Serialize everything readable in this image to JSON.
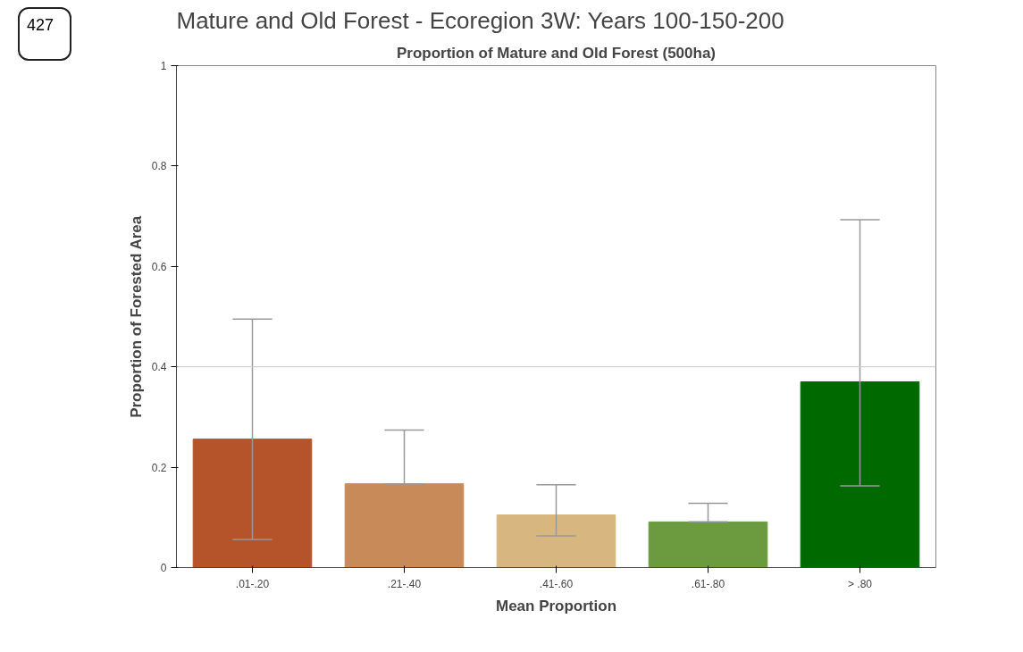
{
  "chart_data": {
    "type": "bar",
    "title": "Mature and Old Forest - Ecoregion 3W: Years 100-150-200",
    "subtitle": "Proportion of Mature and Old Forest (500ha)",
    "xlabel": "Mean Proportion",
    "ylabel": "Proportion of Forested Area",
    "annotations": [
      "427"
    ],
    "categories": [
      ".01-.20",
      ".21-.40",
      ".41-.60",
      ".61-.80",
      "> .80"
    ],
    "values": [
      0.256,
      0.167,
      0.105,
      0.091,
      0.37
    ],
    "colors": [
      "#b5532a",
      "#c98a5a",
      "#d8b680",
      "#6b9a3f",
      "#006a00"
    ],
    "errors": [
      [
        0.056,
        0.495
      ],
      [
        0.167,
        0.274
      ],
      [
        0.063,
        0.165
      ],
      [
        0.091,
        0.128
      ],
      [
        0.163,
        0.693
      ]
    ],
    "ylim": [
      0,
      1
    ],
    "yticks": [
      0,
      {
        "value": 0.2,
        "label": "0.2"
      },
      {
        "value": 0.4,
        "label": "0.4"
      },
      {
        "value": 0.6,
        "label": "0.6"
      },
      {
        "value": 0.8,
        "label": "0.8"
      },
      1
    ],
    "ref_lines": [
      {
        "axis": "y",
        "value": 0.4,
        "label": null,
        "color": "#c8c8c8"
      }
    ],
    "grid": false
  }
}
